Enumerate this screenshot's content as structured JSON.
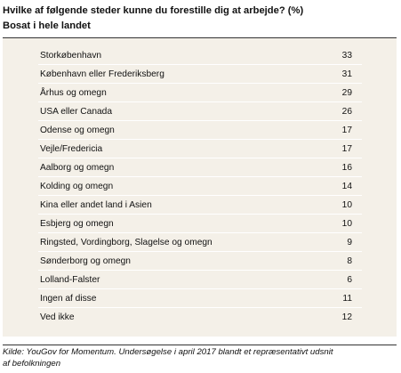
{
  "header": {
    "title": "Hvilke af følgende steder kunne du forestille dig at arbejde? (%)",
    "subtitle": "Bosat i hele landet"
  },
  "table": {
    "rows": [
      {
        "label": "Storkøbenhavn",
        "value": "33"
      },
      {
        "label": "København eller Frederiksberg",
        "value": "31"
      },
      {
        "label": "Århus og omegn",
        "value": "29"
      },
      {
        "label": "USA eller Canada",
        "value": "26"
      },
      {
        "label": "Odense og omegn",
        "value": "17"
      },
      {
        "label": "Vejle/Fredericia",
        "value": "17"
      },
      {
        "label": "Aalborg og omegn",
        "value": "16"
      },
      {
        "label": "Kolding og omegn",
        "value": "14"
      },
      {
        "label": "Kina eller andet land i Asien",
        "value": "10"
      },
      {
        "label": "Esbjerg og omegn",
        "value": "10"
      },
      {
        "label": "Ringsted, Vordingborg, Slagelse og omegn",
        "value": "9"
      },
      {
        "label": "Sønderborg og omegn",
        "value": "8"
      },
      {
        "label": "Lolland-Falster",
        "value": "6"
      },
      {
        "label": "Ingen af disse",
        "value": "11"
      },
      {
        "label": "Ved ikke",
        "value": "12"
      }
    ]
  },
  "footer": {
    "source_line1": "Kilde: YouGov for Momentum. Undersøgelse i april 2017 blandt et repræsentativt udsnit",
    "source_line2": "af befolkningen"
  },
  "colors": {
    "panel_background": "#f4f0e8",
    "row_divider": "#ffffff",
    "rule": "#333333"
  }
}
